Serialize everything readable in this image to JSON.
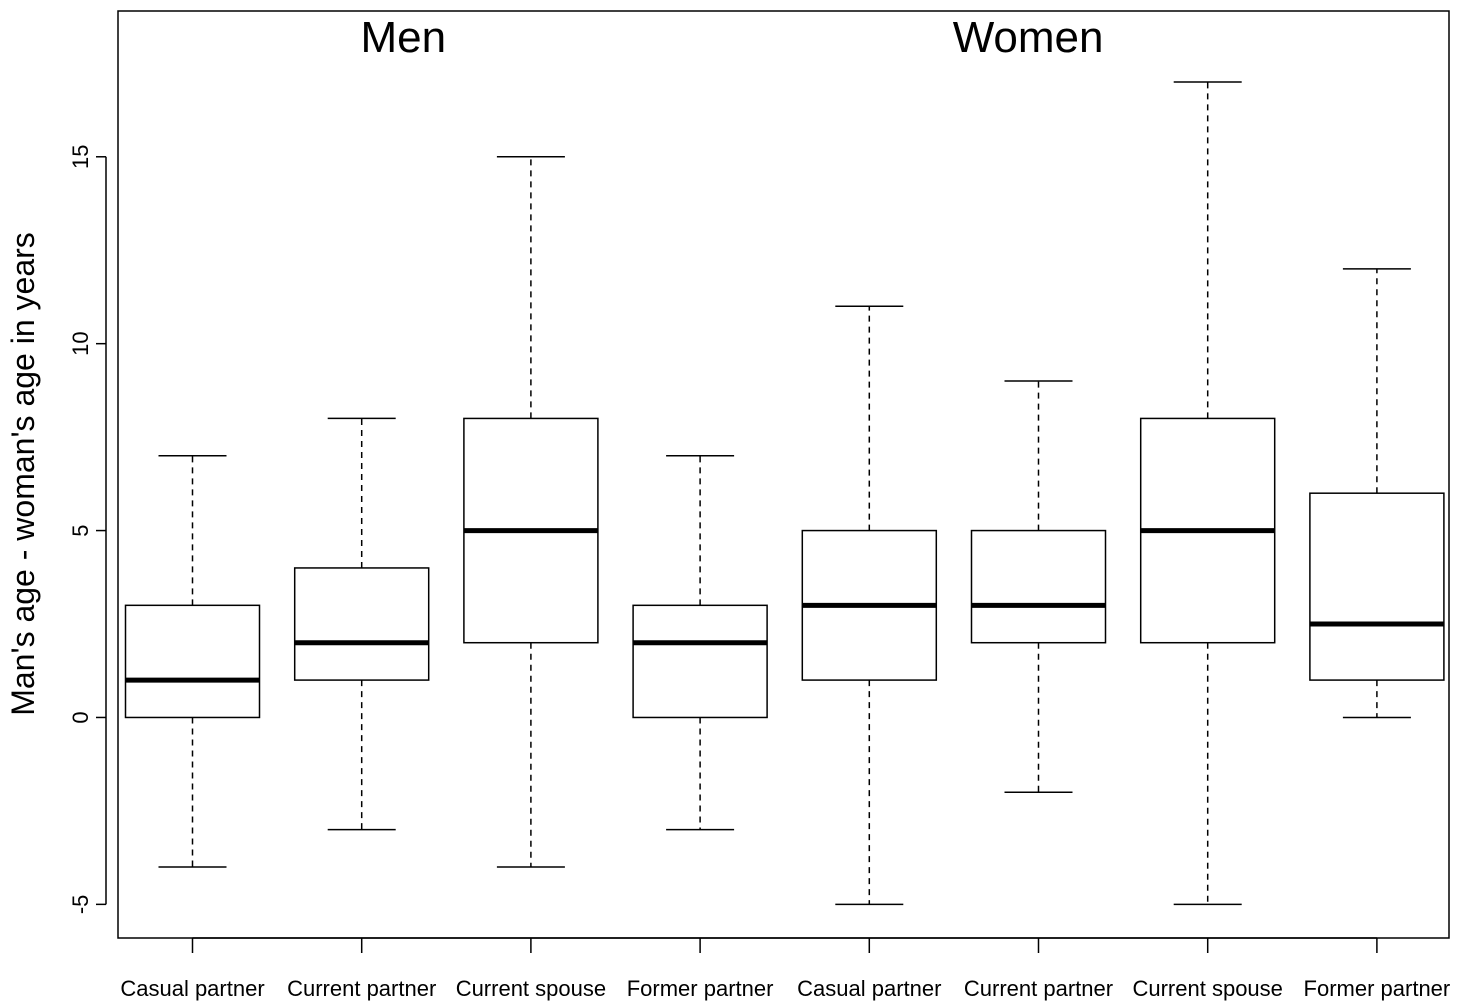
{
  "chart_data": {
    "type": "boxplot",
    "ylabel": "Man's age - woman's age in years",
    "ylim": [
      -5.9,
      18.9
    ],
    "yticks": [
      -5,
      0,
      5,
      10,
      15
    ],
    "ytick_labels": [
      "-5",
      "0",
      "5",
      "10",
      "15"
    ],
    "groups": [
      {
        "title": "Men",
        "categories": [
          0,
          1,
          2,
          3
        ]
      },
      {
        "title": "Women",
        "categories": [
          4,
          5,
          6,
          7
        ]
      }
    ],
    "categories": [
      "Casual partner",
      "Current partner",
      "Current spouse",
      "Former partner",
      "Casual partner",
      "Current partner",
      "Current spouse",
      "Former partner"
    ],
    "series": [
      {
        "min": -4,
        "q1": 0,
        "median": 1,
        "q3": 3,
        "max": 7
      },
      {
        "min": -3,
        "q1": 1,
        "median": 2,
        "q3": 4,
        "max": 8
      },
      {
        "min": -4,
        "q1": 2,
        "median": 5,
        "q3": 8,
        "max": 15
      },
      {
        "min": -3,
        "q1": 0,
        "median": 2,
        "q3": 3,
        "max": 7
      },
      {
        "min": -5,
        "q1": 1,
        "median": 3,
        "q3": 5,
        "max": 11
      },
      {
        "min": -2,
        "q1": 2,
        "median": 3,
        "q3": 5,
        "max": 9
      },
      {
        "min": -5,
        "q1": 2,
        "median": 5,
        "q3": 8,
        "max": 17
      },
      {
        "min": 0,
        "q1": 1,
        "median": 2.5,
        "q3": 6,
        "max": 12
      }
    ],
    "grid": false,
    "legend": "none"
  }
}
